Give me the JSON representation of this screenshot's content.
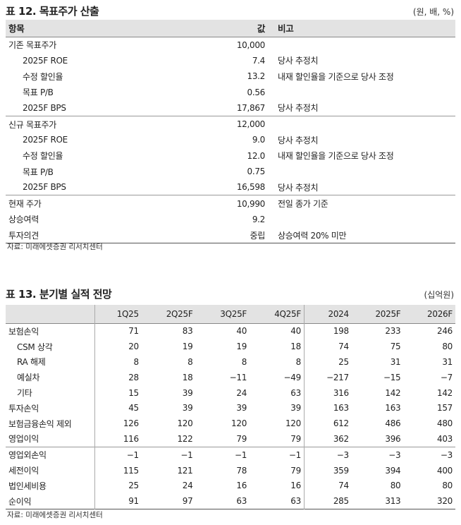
{
  "table12": {
    "title": "표 12. 목표주가 산출",
    "unit": "(원, 배, %)",
    "headers": [
      "항목",
      "값",
      "비고"
    ],
    "rows": [
      {
        "label": "기존 목표주가",
        "value": "10,000",
        "note": "",
        "indent": false,
        "group_start": false
      },
      {
        "label": "2025F ROE",
        "value": "7.4",
        "note": "당사 추정치",
        "indent": true
      },
      {
        "label": "수정 할인율",
        "value": "13.2",
        "note": "내재 할인율을 기준으로 당사 조정",
        "indent": true
      },
      {
        "label": "목표 P/B",
        "value": "0.56",
        "note": "",
        "indent": true
      },
      {
        "label": "2025F BPS",
        "value": "17,867",
        "note": "당사 추정치",
        "indent": true
      },
      {
        "label": "신규 목표주가",
        "value": "12,000",
        "note": "",
        "indent": false,
        "group_start": true
      },
      {
        "label": "2025F ROE",
        "value": "9.0",
        "note": "당사 추정치",
        "indent": true
      },
      {
        "label": "수정 할인율",
        "value": "12.0",
        "note": "내재 할인율을 기준으로 당사 조정",
        "indent": true
      },
      {
        "label": "목표 P/B",
        "value": "0.75",
        "note": "",
        "indent": true
      },
      {
        "label": "2025F BPS",
        "value": "16,598",
        "note": "당사 추정치",
        "indent": true
      },
      {
        "label": "현재 주가",
        "value": "10,990",
        "note": "전일 종가 기준",
        "indent": false,
        "group_start": true
      },
      {
        "label": "상승여력",
        "value": "9.2",
        "note": "",
        "indent": false
      },
      {
        "label": "투자의견",
        "value": "중립",
        "note": "상승여력 20% 미만",
        "indent": false
      }
    ],
    "source": "자료: 미래에셋증권 리서치센터"
  },
  "table13": {
    "title": "표 13. 분기별 실적 전망",
    "unit": "(십억원)",
    "headers": [
      "",
      "1Q25",
      "2Q25F",
      "3Q25F",
      "4Q25F",
      "2024",
      "2025F",
      "2026F"
    ],
    "rows": [
      {
        "label": "보험손익",
        "values": [
          "71",
          "83",
          "40",
          "40",
          "198",
          "233",
          "246"
        ],
        "indent": false
      },
      {
        "label": "CSM 상각",
        "values": [
          "20",
          "19",
          "19",
          "18",
          "74",
          "75",
          "80"
        ],
        "indent": true
      },
      {
        "label": "RA 해제",
        "values": [
          "8",
          "8",
          "8",
          "8",
          "25",
          "31",
          "31"
        ],
        "indent": true
      },
      {
        "label": "예실차",
        "values": [
          "28",
          "18",
          "−11",
          "−49",
          "−217",
          "−15",
          "−7"
        ],
        "indent": true
      },
      {
        "label": "기타",
        "values": [
          "15",
          "39",
          "24",
          "63",
          "316",
          "142",
          "142"
        ],
        "indent": true
      },
      {
        "label": "투자손익",
        "values": [
          "45",
          "39",
          "39",
          "39",
          "163",
          "163",
          "157"
        ],
        "indent": false
      },
      {
        "label": "보험금융손익 제외",
        "values": [
          "126",
          "120",
          "120",
          "120",
          "612",
          "486",
          "480"
        ],
        "indent": false
      },
      {
        "label": "영업이익",
        "values": [
          "116",
          "122",
          "79",
          "79",
          "362",
          "396",
          "403"
        ],
        "indent": false
      },
      {
        "label": "영업외손익",
        "values": [
          "−1",
          "−1",
          "−1",
          "−1",
          "−3",
          "−3",
          "−3"
        ],
        "indent": false,
        "group_start": true
      },
      {
        "label": "세전이익",
        "values": [
          "115",
          "121",
          "78",
          "79",
          "359",
          "394",
          "400"
        ],
        "indent": false
      },
      {
        "label": "법인세비용",
        "values": [
          "25",
          "24",
          "16",
          "16",
          "74",
          "80",
          "80"
        ],
        "indent": false
      },
      {
        "label": "순이익",
        "values": [
          "91",
          "97",
          "63",
          "63",
          "285",
          "313",
          "320"
        ],
        "indent": false
      }
    ],
    "source": "자료: 미래에셋증권 리서치센터"
  }
}
